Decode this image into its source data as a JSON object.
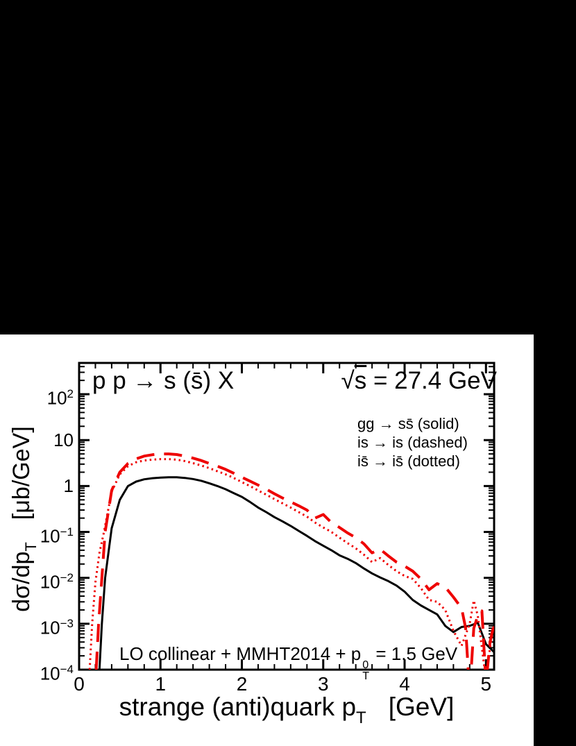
{
  "window": {
    "background": "#000000",
    "panel_background": "#ffffff"
  },
  "plot": {
    "title_left": "p p → s (s̄) X",
    "energy": {
      "radical": "√",
      "radicand": "s",
      "rest": " = 27.4 GeV"
    },
    "legend": [
      "gg → ss̄ (solid)",
      "is → is (dashed)",
      "is̄ → is̄ (dotted)"
    ],
    "annotation": {
      "pre": "LO collinear + MMHT2014 + p",
      "sup": "0",
      "sub": "T",
      "post": " = 1.5 GeV"
    },
    "x_axis": {
      "title_pre": "strange (anti)quark p",
      "title_sub": "T",
      "title_post": "[GeV]",
      "ticks": [
        {
          "label": "0",
          "v": 0
        },
        {
          "label": "1",
          "v": 1
        },
        {
          "label": "2",
          "v": 2
        },
        {
          "label": "3",
          "v": 3
        },
        {
          "label": "4",
          "v": 4
        },
        {
          "label": "5",
          "v": 5
        }
      ]
    },
    "y_axis": {
      "title_pre": "dσ/dp",
      "title_sub": "T",
      "title_post": "[μb/GeV]",
      "ticks": [
        {
          "base": "10",
          "exp": "2",
          "v": 100
        },
        {
          "base": "10",
          "exp": "",
          "v": 10
        },
        {
          "base": "1",
          "exp": "",
          "v": 1
        },
        {
          "base": "10",
          "exp": "−1",
          "v": 0.1
        },
        {
          "base": "10",
          "exp": "−2",
          "v": 0.01
        },
        {
          "base": "10",
          "exp": "−3",
          "v": 0.001
        },
        {
          "base": "10",
          "exp": "−4",
          "v": 0.0001
        }
      ]
    }
  },
  "chart_data": {
    "type": "line",
    "title": "p p → s (s̄) X   √s = 27.4 GeV",
    "annotation": "LO collinear + MMHT2014 + p_T^0 = 1.5 GeV",
    "xlabel": "strange (anti)quark p_T  [GeV]",
    "ylabel": "dσ/dp_T  [μb/GeV]",
    "xlim": [
      0,
      5.1
    ],
    "ylim": [
      0.0001,
      480
    ],
    "yscale": "log",
    "grid": false,
    "legend_position": "upper right, text only",
    "x_minor_step": 0.2,
    "series": [
      {
        "name": "gg → ss̄ (solid)",
        "style": "solid",
        "color": "#000000",
        "x": [
          0.25,
          0.28,
          0.32,
          0.4,
          0.5,
          0.6,
          0.7,
          0.8,
          0.9,
          1.0,
          1.1,
          1.2,
          1.3,
          1.4,
          1.5,
          1.6,
          1.7,
          1.8,
          1.9,
          2.0,
          2.1,
          2.2,
          2.3,
          2.4,
          2.5,
          2.6,
          2.7,
          2.8,
          2.9,
          3.0,
          3.1,
          3.2,
          3.3,
          3.4,
          3.5,
          3.6,
          3.7,
          3.8,
          3.9,
          4.0,
          4.1,
          4.2,
          4.3,
          4.4,
          4.5,
          4.6,
          4.7,
          4.8,
          4.9,
          5.0,
          5.1
        ],
        "y": [
          0.0001,
          0.001,
          0.01,
          0.12,
          0.5,
          1.0,
          1.25,
          1.4,
          1.48,
          1.53,
          1.55,
          1.55,
          1.5,
          1.42,
          1.3,
          1.15,
          1.0,
          0.85,
          0.7,
          0.58,
          0.45,
          0.34,
          0.27,
          0.21,
          0.17,
          0.135,
          0.105,
          0.082,
          0.063,
          0.05,
          0.04,
          0.031,
          0.026,
          0.021,
          0.016,
          0.0125,
          0.0102,
          0.0085,
          0.0068,
          0.005,
          0.0033,
          0.0025,
          0.002,
          0.0016,
          0.0009,
          0.00066,
          0.00085,
          0.0009,
          0.00105,
          0.00036,
          0.00024
        ]
      },
      {
        "name": "is → is (dashed)",
        "style": "dashed",
        "color": "#ee0000",
        "x": [
          0.21,
          0.24,
          0.28,
          0.32,
          0.4,
          0.5,
          0.6,
          0.7,
          0.8,
          0.9,
          1.0,
          1.1,
          1.2,
          1.3,
          1.4,
          1.5,
          1.6,
          1.7,
          1.8,
          1.9,
          2.0,
          2.1,
          2.2,
          2.3,
          2.4,
          2.5,
          2.6,
          2.7,
          2.8,
          2.9,
          3.0,
          3.1,
          3.2,
          3.3,
          3.4,
          3.5,
          3.6,
          3.7,
          3.8,
          3.9,
          4.0,
          4.1,
          4.2,
          4.3,
          4.4,
          4.5,
          4.6,
          4.7,
          4.75,
          4.8,
          4.85,
          4.9,
          4.95,
          5.0,
          5.05,
          5.1
        ],
        "y": [
          0.0001,
          0.001,
          0.01,
          0.1,
          0.8,
          2.0,
          3.1,
          3.9,
          4.5,
          4.8,
          5.0,
          5.0,
          4.85,
          4.5,
          4.05,
          3.6,
          3.1,
          2.7,
          2.3,
          1.9,
          1.55,
          1.28,
          1.05,
          0.85,
          0.68,
          0.55,
          0.45,
          0.37,
          0.3,
          0.2,
          0.24,
          0.16,
          0.125,
          0.095,
          0.075,
          0.055,
          0.035,
          0.042,
          0.03,
          0.022,
          0.018,
          0.014,
          0.0095,
          0.0055,
          0.0075,
          0.0063,
          0.0038,
          0.0022,
          0.0008,
          3e-05,
          0.0008,
          0.0015,
          0.0019,
          5e-05,
          0.0004,
          0.001
        ]
      },
      {
        "name": "is̄ → is̄ (dotted)",
        "style": "dotted",
        "color": "#ee0000",
        "x": [
          0.13,
          0.16,
          0.2,
          0.25,
          0.3,
          0.4,
          0.5,
          0.6,
          0.7,
          0.8,
          0.9,
          1.0,
          1.1,
          1.2,
          1.3,
          1.4,
          1.5,
          1.6,
          1.7,
          1.8,
          1.9,
          2.0,
          2.1,
          2.2,
          2.3,
          2.4,
          2.5,
          2.6,
          2.7,
          2.8,
          2.9,
          3.0,
          3.1,
          3.2,
          3.3,
          3.4,
          3.5,
          3.6,
          3.7,
          3.8,
          3.9,
          4.0,
          4.1,
          4.2,
          4.3,
          4.4,
          4.5,
          4.6,
          4.7,
          4.8,
          4.85,
          4.9,
          5.0,
          5.05,
          5.1
        ],
        "y": [
          0.0001,
          0.001,
          0.008,
          0.035,
          0.09,
          0.75,
          1.8,
          2.7,
          3.3,
          3.6,
          3.75,
          3.85,
          3.85,
          3.75,
          3.5,
          3.15,
          2.8,
          2.45,
          2.1,
          1.8,
          1.5,
          1.22,
          1.0,
          0.8,
          0.65,
          0.52,
          0.42,
          0.34,
          0.27,
          0.215,
          0.16,
          0.125,
          0.1,
          0.075,
          0.057,
          0.044,
          0.032,
          0.022,
          0.027,
          0.019,
          0.014,
          0.011,
          0.0095,
          0.006,
          0.0033,
          0.003,
          0.002,
          0.0007,
          0.00033,
          0.001,
          0.0032,
          0.0015,
          6e-05,
          0.0003,
          0.001
        ]
      }
    ]
  }
}
